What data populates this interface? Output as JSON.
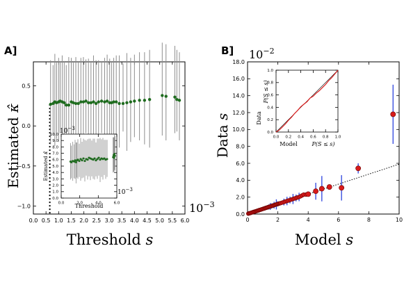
{
  "colors": {
    "errorbar_a": "#8c8c8c",
    "point_a": "#1e6b1e",
    "errorbar_b": "#3a4fe0",
    "point_b": "#d81b1b",
    "point_b_edge": "#6a0000",
    "inset_b_line": "#d81b1b"
  },
  "panels": {
    "a": {
      "label": "A]",
      "xlabel": "Threshold",
      "xlabel_var": "s",
      "ylabel": "Estimated",
      "ylabel_var": "κ̂",
      "x_multiplier": "10",
      "x_multiplier_exp": "−3",
      "inset": {
        "ylabel": "Estimated",
        "ylabel_var": "κ̂",
        "xlabel": "Threshold",
        "y_multiplier": "10",
        "y_multiplier_exp": "−3",
        "x_multiplier": "10",
        "x_multiplier_exp": "−3"
      }
    },
    "b": {
      "label": "B]",
      "xlabel": "Model",
      "xlabel_var": "s",
      "ylabel": "Data",
      "ylabel_var": "s",
      "y_multiplier": "10",
      "y_multiplier_exp": "−2",
      "inset": {
        "xlabel_left": "Model",
        "xlabel_right": "P(S ≤ s)",
        "ylabel_top": "P(S ≤ s)",
        "ylabel_bottom": "Data"
      }
    }
  },
  "chart_data": [
    {
      "id": "panel-a-main",
      "type": "scatter",
      "xlim": [
        0.0,
        6.0
      ],
      "ylim": [
        -1.1,
        0.8
      ],
      "x_ticks": [
        "0.0",
        "0.5",
        "1.0",
        "1.5",
        "2.0",
        "2.5",
        "3.0",
        "3.5",
        "4.0",
        "4.5",
        "5.0",
        "5.5",
        "6.0"
      ],
      "y_ticks": [
        "−1.0",
        "−0.5",
        "0.0",
        "0.5"
      ],
      "threshold_line_x": 0.65,
      "x": [
        0.68,
        0.78,
        0.85,
        0.92,
        1.0,
        1.06,
        1.14,
        1.22,
        1.3,
        1.4,
        1.5,
        1.58,
        1.68,
        1.78,
        1.88,
        1.98,
        2.08,
        2.18,
        2.28,
        2.38,
        2.48,
        2.58,
        2.7,
        2.82,
        2.92,
        3.02,
        3.1,
        3.18,
        3.28,
        3.4,
        3.55,
        3.7,
        3.85,
        4.0,
        4.2,
        4.4,
        4.6,
        5.1,
        5.25,
        5.6,
        5.68,
        5.78
      ],
      "y": [
        0.27,
        0.28,
        0.3,
        0.29,
        0.3,
        0.31,
        0.3,
        0.29,
        0.26,
        0.26,
        0.3,
        0.29,
        0.28,
        0.28,
        0.3,
        0.3,
        0.31,
        0.29,
        0.29,
        0.3,
        0.28,
        0.3,
        0.31,
        0.3,
        0.31,
        0.29,
        0.29,
        0.3,
        0.3,
        0.28,
        0.28,
        0.29,
        0.3,
        0.31,
        0.32,
        0.32,
        0.33,
        0.38,
        0.37,
        0.36,
        0.33,
        0.32
      ],
      "err_low": [
        -0.5,
        -0.4,
        -0.55,
        -0.45,
        -0.5,
        -0.4,
        -0.6,
        -0.5,
        -0.4,
        -0.55,
        -0.45,
        -0.5,
        -0.6,
        -0.45,
        -0.5,
        -0.55,
        -0.4,
        -0.5,
        -0.45,
        -0.6,
        -0.5,
        -0.45,
        -0.4,
        -0.55,
        -0.6,
        -0.5,
        -0.4,
        -0.45,
        -0.5,
        -0.55,
        -0.35,
        -0.6,
        -0.5,
        -0.45,
        -0.5,
        -0.55,
        -0.6,
        -0.5,
        -0.55,
        -0.45,
        -0.4,
        -0.5
      ],
      "err_high": [
        0.55,
        0.48,
        0.6,
        0.5,
        0.55,
        0.5,
        0.58,
        0.52,
        0.5,
        0.6,
        0.55,
        0.5,
        0.58,
        0.52,
        0.55,
        0.56,
        0.52,
        0.55,
        0.5,
        0.58,
        0.54,
        0.52,
        0.5,
        0.55,
        0.58,
        0.55,
        0.5,
        0.55,
        0.58,
        0.6,
        0.5,
        0.62,
        0.55,
        0.58,
        0.6,
        0.6,
        0.62,
        0.66,
        0.65,
        0.64,
        0.62,
        0.6
      ]
    },
    {
      "id": "panel-a-inset",
      "type": "scatter",
      "xlim": [
        0.0,
        6.0
      ],
      "ylim": [
        0.0,
        10.0
      ],
      "x_ticks": [
        "0.0",
        "2.0",
        "4.0",
        "6.0"
      ],
      "y_ticks": [
        "0.0",
        "1.0",
        "2.0",
        "3.0",
        "4.0",
        "5.0",
        "6.0",
        "7.0",
        "8.0",
        "9.0",
        "10.0"
      ],
      "x": [
        1.0,
        1.1,
        1.25,
        1.4,
        1.5,
        1.6,
        1.7,
        1.8,
        1.95,
        2.1,
        2.25,
        2.4,
        2.55,
        2.7,
        2.85,
        3.0,
        3.15,
        3.3,
        3.45,
        3.6,
        3.75,
        3.9,
        4.05,
        4.2,
        4.35,
        4.5,
        4.65,
        4.8,
        4.95,
        5.6,
        5.65,
        5.7,
        5.75,
        5.8
      ],
      "y": [
        5.7,
        5.6,
        5.8,
        5.7,
        5.9,
        5.6,
        5.9,
        6.0,
        5.8,
        6.1,
        5.9,
        6.2,
        5.8,
        6.1,
        6.0,
        6.3,
        6.2,
        6.1,
        6.0,
        6.2,
        5.9,
        6.1,
        6.3,
        6.0,
        6.2,
        6.1,
        6.2,
        6.0,
        6.1,
        6.4,
        6.7,
        6.3,
        6.9,
        6.6
      ],
      "err_low": [
        2.8,
        2.5,
        3.1,
        2.6,
        2.9,
        3.3,
        2.7,
        3.0,
        2.5,
        3.4,
        2.8,
        3.0,
        3.2,
        2.6,
        3.1,
        2.9,
        3.4,
        2.7,
        3.0,
        3.3,
        2.5,
        3.1,
        2.8,
        3.5,
        2.9,
        3.2,
        2.6,
        3.0,
        2.8,
        2.4,
        2.6,
        2.2,
        2.5,
        2.3
      ],
      "err_high": [
        2.9,
        2.6,
        3.0,
        2.7,
        3.2,
        3.1,
        2.8,
        3.2,
        2.7,
        3.3,
        2.9,
        3.1,
        3.3,
        2.9,
        3.2,
        3.0,
        3.1,
        2.9,
        3.3,
        3.1,
        2.8,
        3.2,
        3.0,
        3.4,
        3.0,
        3.3,
        2.9,
        3.1,
        3.0,
        3.1,
        2.8,
        3.2,
        3.0,
        3.1
      ]
    },
    {
      "id": "panel-b-main",
      "type": "scatter",
      "xlim": [
        0,
        10
      ],
      "ylim": [
        0.0,
        18.0
      ],
      "x_ticks": [
        "0",
        "2",
        "4",
        "6",
        "8",
        "10"
      ],
      "y_ticks": [
        "0.0",
        "2.0",
        "4.0",
        "6.0",
        "8.0",
        "10.0",
        "12.0",
        "14.0",
        "16.0",
        "18.0"
      ],
      "reference_line_slope": 0.59,
      "x": [
        0.05,
        0.1,
        0.15,
        0.2,
        0.25,
        0.3,
        0.35,
        0.4,
        0.45,
        0.5,
        0.55,
        0.6,
        0.65,
        0.7,
        0.75,
        0.8,
        0.85,
        0.9,
        0.95,
        1.0,
        1.05,
        1.1,
        1.15,
        1.2,
        1.25,
        1.3,
        1.35,
        1.4,
        1.45,
        1.5,
        1.55,
        1.6,
        1.65,
        1.7,
        1.75,
        1.8,
        1.85,
        1.9,
        1.95,
        2.0,
        2.05,
        2.1,
        2.15,
        2.2,
        2.3,
        2.4,
        2.5,
        2.6,
        2.7,
        2.8,
        2.9,
        3.0,
        3.1,
        3.2,
        3.3,
        3.4,
        3.5,
        3.6,
        3.7,
        3.85,
        4.0,
        4.5,
        4.9,
        5.4,
        6.2,
        7.3,
        9.6
      ],
      "y": [
        0.05,
        0.08,
        0.1,
        0.13,
        0.16,
        0.19,
        0.22,
        0.25,
        0.28,
        0.3,
        0.33,
        0.36,
        0.39,
        0.42,
        0.45,
        0.48,
        0.51,
        0.54,
        0.57,
        0.6,
        0.63,
        0.66,
        0.69,
        0.72,
        0.75,
        0.78,
        0.81,
        0.84,
        0.87,
        0.9,
        0.93,
        0.96,
        0.99,
        1.02,
        1.05,
        1.08,
        1.11,
        1.14,
        1.17,
        1.2,
        1.22,
        1.25,
        1.28,
        1.3,
        1.36,
        1.42,
        1.48,
        1.54,
        1.6,
        1.66,
        1.72,
        1.78,
        1.84,
        1.9,
        1.96,
        2.02,
        2.1,
        2.2,
        2.3,
        2.3,
        2.35,
        2.7,
        3.0,
        3.2,
        3.1,
        5.4,
        11.8
      ],
      "err_low": [
        0,
        0,
        0,
        0,
        0,
        0,
        0,
        0,
        0,
        0,
        0,
        0,
        0,
        0,
        0,
        0,
        0,
        0,
        0,
        0,
        0,
        0,
        0,
        0,
        0,
        0,
        0,
        0.3,
        0,
        0.4,
        0,
        0.3,
        0,
        0,
        0.4,
        0,
        0,
        0.6,
        0,
        0.3,
        0,
        0,
        0,
        0,
        0,
        0.4,
        0,
        0.5,
        0,
        0.4,
        0,
        0.6,
        0,
        0.4,
        0,
        0.5,
        0,
        0,
        0,
        0,
        0,
        1.0,
        1.5,
        0,
        1.5,
        0.6,
        3.5
      ],
      "err_high": [
        0,
        0,
        0,
        0,
        0,
        0,
        0,
        0,
        0,
        0,
        0,
        0,
        0,
        0,
        0,
        0,
        0,
        0,
        0,
        0,
        0,
        0,
        0,
        0,
        0,
        0,
        0,
        0.3,
        0,
        0.4,
        0,
        0.3,
        0,
        0,
        0.4,
        0,
        0,
        0.6,
        0,
        0.3,
        0,
        0,
        0,
        0,
        0,
        0.4,
        0,
        0.5,
        0,
        0.4,
        0,
        0.6,
        0,
        0.4,
        0,
        0.5,
        0,
        0,
        0,
        0,
        0,
        1.0,
        1.5,
        0,
        1.5,
        0.6,
        3.5
      ]
    },
    {
      "id": "panel-b-inset",
      "type": "line",
      "xlim": [
        0.0,
        1.0
      ],
      "ylim": [
        0.0,
        1.0
      ],
      "x_ticks": [
        "0.0",
        "0.2",
        "0.4",
        "0.6",
        "0.8",
        "1.0"
      ],
      "y_ticks": [
        "0.0",
        "0.2",
        "0.4",
        "0.6",
        "0.8",
        "1.0"
      ],
      "x": [
        0.0,
        0.05,
        0.1,
        0.15,
        0.2,
        0.25,
        0.3,
        0.35,
        0.4,
        0.45,
        0.5,
        0.55,
        0.6,
        0.65,
        0.7,
        0.75,
        0.8,
        0.85,
        0.9,
        0.95,
        1.0
      ],
      "y": [
        0.0,
        0.03,
        0.08,
        0.13,
        0.19,
        0.24,
        0.3,
        0.35,
        0.41,
        0.45,
        0.49,
        0.55,
        0.58,
        0.63,
        0.67,
        0.72,
        0.77,
        0.83,
        0.88,
        0.94,
        1.0
      ]
    }
  ]
}
